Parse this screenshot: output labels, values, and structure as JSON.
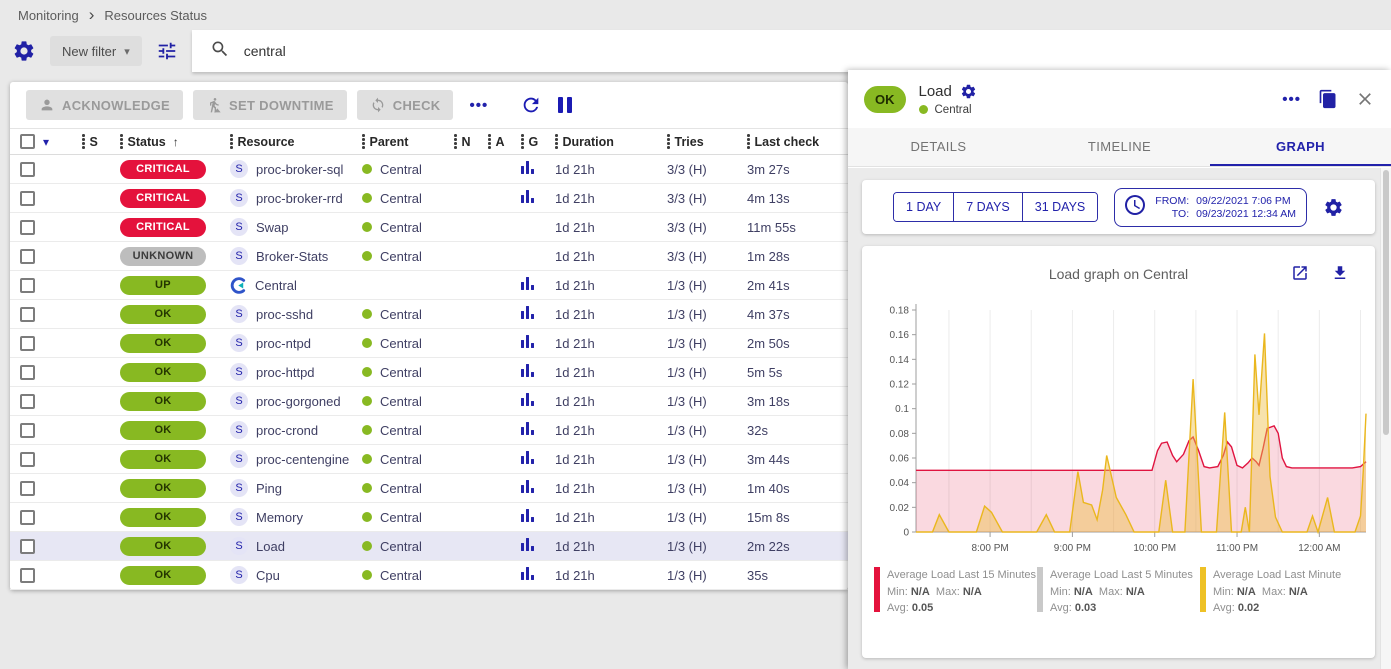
{
  "colors": {
    "accent": "#2222ab",
    "critical": "#e4123c",
    "success": "#88b922",
    "unknown": "#bdbdbd"
  },
  "icons": {
    "breadcrumb_separator": "›",
    "caret_down": "▾",
    "sort_ascending": "↑",
    "more": "•••"
  },
  "breadcrumb": {
    "items": [
      "Monitoring",
      "Resources Status"
    ]
  },
  "filter_bar": {
    "new_filter_label": "New filter",
    "search_value": "central"
  },
  "toolbar": {
    "acknowledge_label": "ACKNOWLEDGE",
    "set_downtime_label": "SET DOWNTIME",
    "check_label": "CHECK"
  },
  "table": {
    "columns": [
      {
        "label": "S",
        "sorted": false
      },
      {
        "label": "Status",
        "sorted": true
      },
      {
        "label": "Resource",
        "sorted": false
      },
      {
        "label": "Parent",
        "sorted": false
      },
      {
        "label": "N",
        "sorted": false
      },
      {
        "label": "A",
        "sorted": false
      },
      {
        "label": "G",
        "sorted": false
      },
      {
        "label": "Duration",
        "sorted": false
      },
      {
        "label": "Tries",
        "sorted": false
      },
      {
        "label": "Last check",
        "sorted": false
      }
    ],
    "rows": [
      {
        "status": "CRITICAL",
        "sev": "critical",
        "resource": "proc-broker-sql",
        "is_service": true,
        "is_host": false,
        "parent": "Central",
        "has_parent": true,
        "graph": true,
        "duration": "1d 21h",
        "tries": "3/3 (H)",
        "last_check": "3m 27s",
        "row_class": ""
      },
      {
        "status": "CRITICAL",
        "sev": "critical",
        "resource": "proc-broker-rrd",
        "is_service": true,
        "is_host": false,
        "parent": "Central",
        "has_parent": true,
        "graph": true,
        "duration": "1d 21h",
        "tries": "3/3 (H)",
        "last_check": "4m 13s",
        "row_class": ""
      },
      {
        "status": "CRITICAL",
        "sev": "critical",
        "resource": "Swap",
        "is_service": true,
        "is_host": false,
        "parent": "Central",
        "has_parent": true,
        "graph": false,
        "duration": "1d 21h",
        "tries": "3/3 (H)",
        "last_check": "11m 55s",
        "row_class": ""
      },
      {
        "status": "UNKNOWN",
        "sev": "unknown",
        "resource": "Broker-Stats",
        "is_service": true,
        "is_host": false,
        "parent": "Central",
        "has_parent": true,
        "graph": false,
        "duration": "1d 21h",
        "tries": "3/3 (H)",
        "last_check": "1m 28s",
        "row_class": ""
      },
      {
        "status": "UP",
        "sev": "up",
        "resource": "Central",
        "is_service": false,
        "is_host": true,
        "parent": "",
        "has_parent": false,
        "graph": true,
        "duration": "1d 21h",
        "tries": "1/3 (H)",
        "last_check": "2m 41s",
        "row_class": ""
      },
      {
        "status": "OK",
        "sev": "ok",
        "resource": "proc-sshd",
        "is_service": true,
        "is_host": false,
        "parent": "Central",
        "has_parent": true,
        "graph": true,
        "duration": "1d 21h",
        "tries": "1/3 (H)",
        "last_check": "4m 37s",
        "row_class": ""
      },
      {
        "status": "OK",
        "sev": "ok",
        "resource": "proc-ntpd",
        "is_service": true,
        "is_host": false,
        "parent": "Central",
        "has_parent": true,
        "graph": true,
        "duration": "1d 21h",
        "tries": "1/3 (H)",
        "last_check": "2m 50s",
        "row_class": ""
      },
      {
        "status": "OK",
        "sev": "ok",
        "resource": "proc-httpd",
        "is_service": true,
        "is_host": false,
        "parent": "Central",
        "has_parent": true,
        "graph": true,
        "duration": "1d 21h",
        "tries": "1/3 (H)",
        "last_check": "5m 5s",
        "row_class": ""
      },
      {
        "status": "OK",
        "sev": "ok",
        "resource": "proc-gorgoned",
        "is_service": true,
        "is_host": false,
        "parent": "Central",
        "has_parent": true,
        "graph": true,
        "duration": "1d 21h",
        "tries": "1/3 (H)",
        "last_check": "3m 18s",
        "row_class": ""
      },
      {
        "status": "OK",
        "sev": "ok",
        "resource": "proc-crond",
        "is_service": true,
        "is_host": false,
        "parent": "Central",
        "has_parent": true,
        "graph": true,
        "duration": "1d 21h",
        "tries": "1/3 (H)",
        "last_check": "32s",
        "row_class": ""
      },
      {
        "status": "OK",
        "sev": "ok",
        "resource": "proc-centengine",
        "is_service": true,
        "is_host": false,
        "parent": "Central",
        "has_parent": true,
        "graph": true,
        "duration": "1d 21h",
        "tries": "1/3 (H)",
        "last_check": "3m 44s",
        "row_class": ""
      },
      {
        "status": "OK",
        "sev": "ok",
        "resource": "Ping",
        "is_service": true,
        "is_host": false,
        "parent": "Central",
        "has_parent": true,
        "graph": true,
        "duration": "1d 21h",
        "tries": "1/3 (H)",
        "last_check": "1m 40s",
        "row_class": ""
      },
      {
        "status": "OK",
        "sev": "ok",
        "resource": "Memory",
        "is_service": true,
        "is_host": false,
        "parent": "Central",
        "has_parent": true,
        "graph": true,
        "duration": "1d 21h",
        "tries": "1/3 (H)",
        "last_check": "15m 8s",
        "row_class": ""
      },
      {
        "status": "OK",
        "sev": "ok",
        "resource": "Load",
        "is_service": true,
        "is_host": false,
        "parent": "Central",
        "has_parent": true,
        "graph": true,
        "duration": "1d 21h",
        "tries": "1/3 (H)",
        "last_check": "2m 22s",
        "row_class": "highlighted"
      },
      {
        "status": "OK",
        "sev": "ok",
        "resource": "Cpu",
        "is_service": true,
        "is_host": false,
        "parent": "Central",
        "has_parent": true,
        "graph": true,
        "duration": "1d 21h",
        "tries": "1/3 (H)",
        "last_check": "35s",
        "row_class": ""
      }
    ]
  },
  "panel": {
    "status": "OK",
    "title": "Load",
    "parent": "Central",
    "tabs": [
      {
        "label": "DETAILS",
        "cls": ""
      },
      {
        "label": "TIMELINE",
        "cls": ""
      },
      {
        "label": "GRAPH",
        "cls": "active"
      }
    ],
    "range_buttons": [
      {
        "label": "1 DAY"
      },
      {
        "label": "7 DAYS"
      },
      {
        "label": "31 DAYS"
      }
    ],
    "from_label": "FROM:",
    "from_value": "09/22/2021 7:06 PM",
    "to_label": "TO:",
    "to_value": "09/23/2021 12:34 AM"
  },
  "chart_data": {
    "type": "area",
    "title": "Load graph on Central",
    "xlabel": "",
    "ylabel": "",
    "x_range": [
      0,
      328
    ],
    "x_range_note": "minutes from 09/22/2021 7:06 PM to 09/23/2021 12:34 AM",
    "ylim": [
      0,
      0.18
    ],
    "yticks": [
      0,
      0.02,
      0.04,
      0.06,
      0.08,
      0.1,
      0.12,
      0.14,
      0.16,
      0.18
    ],
    "xticks": [
      {
        "t": 54,
        "label": "8:00 PM"
      },
      {
        "t": 114,
        "label": "9:00 PM"
      },
      {
        "t": 174,
        "label": "10:00 PM"
      },
      {
        "t": 234,
        "label": "11:00 PM"
      },
      {
        "t": 294,
        "label": "12:00 AM"
      }
    ],
    "gridlines_t": [
      24,
      54,
      84,
      114,
      144,
      174,
      204,
      234,
      264,
      294,
      324
    ],
    "series": [
      {
        "name": "Average Load Last 15 Minutes",
        "color": "#e01440",
        "fill": "rgba(224,20,64,0.16)",
        "points": [
          [
            0,
            0.05
          ],
          [
            172,
            0.05
          ],
          [
            176,
            0.066
          ],
          [
            179,
            0.072
          ],
          [
            183,
            0.073
          ],
          [
            187,
            0.062
          ],
          [
            190,
            0.057
          ],
          [
            195,
            0.063
          ],
          [
            199,
            0.074
          ],
          [
            202,
            0.077
          ],
          [
            206,
            0.066
          ],
          [
            210,
            0.053
          ],
          [
            214,
            0.052
          ],
          [
            220,
            0.053
          ],
          [
            224,
            0.062
          ],
          [
            227,
            0.073
          ],
          [
            230,
            0.069
          ],
          [
            234,
            0.054
          ],
          [
            238,
            0.052
          ],
          [
            242,
            0.056
          ],
          [
            245,
            0.06
          ],
          [
            248,
            0.057
          ],
          [
            250,
            0.054
          ],
          [
            253,
            0.068
          ],
          [
            256,
            0.084
          ],
          [
            261,
            0.086
          ],
          [
            264,
            0.08
          ],
          [
            267,
            0.06
          ],
          [
            270,
            0.053
          ],
          [
            274,
            0.052
          ],
          [
            318,
            0.052
          ],
          [
            324,
            0.053
          ],
          [
            328,
            0.057
          ]
        ]
      },
      {
        "name": "Average Load Last 5 Minutes",
        "color": "#c9c9c9",
        "fill": "rgba(200,200,200,0.3)",
        "points": []
      },
      {
        "name": "Average Load Last Minute",
        "color": "#eab71e",
        "fill": "rgba(238,190,70,0.45)",
        "points": [
          [
            0,
            0
          ],
          [
            12,
            0
          ],
          [
            17,
            0.014
          ],
          [
            24,
            0
          ],
          [
            44,
            0
          ],
          [
            50,
            0.021
          ],
          [
            55,
            0.016
          ],
          [
            63,
            0
          ],
          [
            88,
            0
          ],
          [
            95,
            0.014
          ],
          [
            101,
            0
          ],
          [
            112,
            0
          ],
          [
            118,
            0.049
          ],
          [
            122,
            0.024
          ],
          [
            128,
            0.022
          ],
          [
            132,
            0.01
          ],
          [
            136,
            0.034
          ],
          [
            139,
            0.062
          ],
          [
            146,
            0.028
          ],
          [
            153,
            0.014
          ],
          [
            159,
            0
          ],
          [
            177,
            0
          ],
          [
            182,
            0.042
          ],
          [
            187,
            0
          ],
          [
            196,
            0
          ],
          [
            202,
            0.124
          ],
          [
            208,
            0
          ],
          [
            219,
            0
          ],
          [
            225,
            0.097
          ],
          [
            230,
            0
          ],
          [
            237,
            0
          ],
          [
            240,
            0.02
          ],
          [
            243,
            0
          ],
          [
            247,
            0.144
          ],
          [
            250,
            0.095
          ],
          [
            254,
            0.161
          ],
          [
            258,
            0.045
          ],
          [
            262,
            0.012
          ],
          [
            267,
            0
          ],
          [
            285,
            0
          ],
          [
            289,
            0.013
          ],
          [
            293,
            0
          ],
          [
            300,
            0.028
          ],
          [
            305,
            0
          ],
          [
            320,
            0
          ],
          [
            324,
            0.013
          ],
          [
            326,
            0.05
          ],
          [
            328,
            0.096
          ]
        ]
      }
    ],
    "legend_labels": {
      "min": "Min:",
      "max": "Max:",
      "avg": "Avg:"
    },
    "legend": [
      {
        "name": "Average Load Last 15 Minutes",
        "color": "#e4123c",
        "min": "N/A",
        "max": "N/A",
        "avg": "0.05"
      },
      {
        "name": "Average Load Last 5 Minutes",
        "color": "#c9c9c9",
        "min": "N/A",
        "max": "N/A",
        "avg": "0.03"
      },
      {
        "name": "Average Load Last Minute",
        "color": "#eec126",
        "min": "N/A",
        "max": "N/A",
        "avg": "0.02"
      }
    ]
  }
}
